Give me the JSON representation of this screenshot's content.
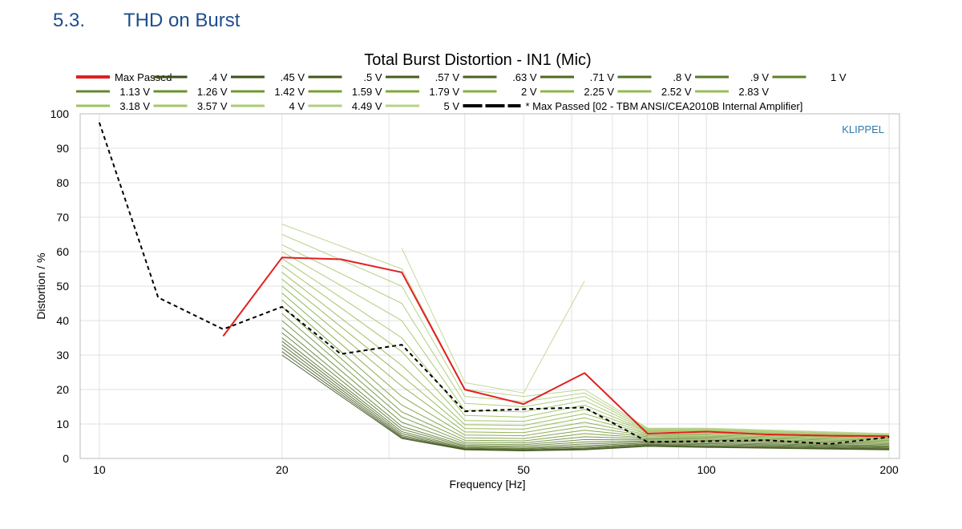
{
  "section": {
    "number": "5.3.",
    "title": "THD on Burst"
  },
  "chart_data": {
    "type": "line",
    "title": "Total Burst Distortion - IN1 (Mic)",
    "xlabel": "Frequency [Hz]",
    "ylabel": "Distortion / %",
    "x_scale": "log",
    "xlim": [
      9.3,
      208
    ],
    "ylim": [
      0,
      100
    ],
    "x_ticks": [
      10,
      20,
      50,
      100,
      200
    ],
    "y_ticks": [
      0,
      10,
      20,
      30,
      40,
      50,
      60,
      70,
      80,
      90,
      100
    ],
    "grid": true,
    "watermark": "KLIPPEL",
    "legend_position": "top",
    "series": [
      {
        "name": "Max Passed",
        "color": "#e02020",
        "style": "solid",
        "emphasis": true,
        "x": [
          16,
          20,
          25,
          31.5,
          40,
          50,
          63,
          80,
          100,
          125,
          160,
          200
        ],
        "y": [
          35.5,
          58.3,
          57.8,
          54,
          20,
          15.8,
          24.8,
          7.2,
          7.8,
          7,
          6.6,
          6.5
        ]
      },
      {
        "name": ".4 V",
        "color": "#3a4d17",
        "x": [
          20,
          31.5,
          40,
          50,
          63,
          80,
          100,
          200
        ],
        "y": [
          30,
          5.8,
          2.5,
          2.2,
          2.5,
          3.5,
          3.2,
          2.5
        ]
      },
      {
        "name": ".45 V",
        "color": "#3d5219",
        "x": [
          20,
          31.5,
          40,
          50,
          63,
          80,
          100,
          200
        ],
        "y": [
          31,
          6,
          2.6,
          2.3,
          2.6,
          3.6,
          3.3,
          2.6
        ]
      },
      {
        "name": ".5 V",
        "color": "#41571b",
        "x": [
          20,
          31.5,
          40,
          50,
          63,
          80,
          100,
          200
        ],
        "y": [
          32,
          6.3,
          2.7,
          2.4,
          2.8,
          3.8,
          3.5,
          2.7
        ]
      },
      {
        "name": ".57 V",
        "color": "#455d1d",
        "x": [
          20,
          31.5,
          40,
          50,
          63,
          80,
          100,
          200
        ],
        "y": [
          33,
          6.7,
          2.8,
          2.5,
          3,
          4,
          3.7,
          2.9
        ]
      },
      {
        "name": ".63 V",
        "color": "#4a631f",
        "x": [
          20,
          31.5,
          40,
          50,
          63,
          80,
          100,
          200
        ],
        "y": [
          34,
          7.2,
          3,
          2.7,
          3.3,
          4.2,
          4,
          3.1
        ]
      },
      {
        "name": ".71 V",
        "color": "#4f6a21",
        "x": [
          20,
          31.5,
          40,
          50,
          63,
          80,
          100,
          200
        ],
        "y": [
          35,
          7.8,
          3.2,
          2.9,
          3.7,
          4.5,
          4.3,
          3.3
        ]
      },
      {
        "name": ".8 V",
        "color": "#547124",
        "x": [
          20,
          31.5,
          40,
          50,
          63,
          80,
          100,
          200
        ],
        "y": [
          36.5,
          8.5,
          3.5,
          3.2,
          4.2,
          4.8,
          4.6,
          3.5
        ]
      },
      {
        "name": ".9 V",
        "color": "#597826",
        "x": [
          20,
          31.5,
          40,
          50,
          63,
          80,
          100,
          200
        ],
        "y": [
          38,
          9.3,
          3.8,
          3.6,
          4.8,
          5.1,
          5,
          3.7
        ]
      },
      {
        "name": "1 V",
        "color": "#5f8029",
        "x": [
          20,
          31.5,
          40,
          50,
          63,
          80,
          100,
          200
        ],
        "y": [
          40,
          10.5,
          4.2,
          4,
          5.5,
          5.4,
          5.3,
          4
        ]
      },
      {
        "name": "1.13 V",
        "color": "#65882c",
        "x": [
          20,
          31.5,
          40,
          50,
          63,
          80,
          100,
          200
        ],
        "y": [
          42,
          12,
          4.7,
          4.5,
          6.3,
          5.7,
          5.6,
          4.3
        ]
      },
      {
        "name": "1.26 V",
        "color": "#6b902f",
        "x": [
          20,
          31.5,
          40,
          50,
          63,
          80,
          100,
          200
        ],
        "y": [
          44,
          13.5,
          5.3,
          5.1,
          7.2,
          6,
          5.9,
          4.6
        ]
      },
      {
        "name": "1.42 V",
        "color": "#729832",
        "x": [
          20,
          31.5,
          40,
          50,
          63,
          80,
          100,
          200
        ],
        "y": [
          46,
          15.5,
          6,
          5.8,
          8.2,
          6.3,
          6.2,
          4.9
        ]
      },
      {
        "name": "1.59 V",
        "color": "#79a036",
        "x": [
          20,
          31.5,
          40,
          50,
          63,
          80,
          100,
          200
        ],
        "y": [
          48,
          18,
          6.8,
          6.6,
          9.3,
          6.6,
          6.5,
          5.2
        ]
      },
      {
        "name": "1.79 V",
        "color": "#80a83a",
        "x": [
          20,
          31.5,
          40,
          50,
          63,
          80,
          100,
          200
        ],
        "y": [
          50,
          21,
          7.7,
          7.5,
          10.5,
          6.9,
          6.8,
          5.5
        ]
      },
      {
        "name": "2 V",
        "color": "#87ae40",
        "x": [
          20,
          31.5,
          40,
          50,
          63,
          80,
          100,
          200
        ],
        "y": [
          52,
          24,
          8.7,
          8.5,
          11.8,
          7.2,
          7.1,
          5.8
        ]
      },
      {
        "name": "2.25 V",
        "color": "#8db447",
        "x": [
          20,
          31.5,
          40,
          50,
          63,
          80,
          100,
          200
        ],
        "y": [
          54,
          27,
          9.8,
          9.6,
          13,
          7.5,
          7.4,
          6
        ]
      },
      {
        "name": "2.52 V",
        "color": "#93b94f",
        "x": [
          20,
          31.5,
          40,
          50,
          63,
          80,
          100,
          200
        ],
        "y": [
          56,
          31,
          11,
          10.8,
          14.2,
          7.8,
          7.7,
          6.2
        ]
      },
      {
        "name": "2.83 V",
        "color": "#99be58",
        "x": [
          20,
          31.5,
          40,
          50,
          63,
          80,
          100,
          200
        ],
        "y": [
          58,
          35,
          12.5,
          12,
          15.5,
          8,
          8,
          6.4
        ]
      },
      {
        "name": "3.18 V",
        "color": "#9fc261",
        "x": [
          20,
          31.5,
          40,
          50,
          63,
          80,
          100,
          200
        ],
        "y": [
          60,
          40,
          14,
          13.5,
          16.8,
          8.2,
          8.2,
          6.6
        ]
      },
      {
        "name": "3.57 V",
        "color": "#a5c66b",
        "x": [
          20,
          31.5,
          40,
          50,
          63,
          80,
          100,
          200
        ],
        "y": [
          62,
          45,
          16,
          15,
          18,
          8.4,
          8.4,
          6.8
        ]
      },
      {
        "name": "4 V",
        "color": "#abca75",
        "x": [
          20,
          31.5,
          40,
          50,
          63,
          80,
          100,
          200
        ],
        "y": [
          65,
          50,
          18,
          16.5,
          19,
          8.6,
          8.6,
          7
        ]
      },
      {
        "name": "4.49 V",
        "color": "#b1ce80",
        "x": [
          20,
          31.5,
          40,
          50,
          63,
          80,
          100,
          200
        ],
        "y": [
          68,
          55,
          20,
          18,
          20,
          8.8,
          8.8,
          7.2
        ]
      },
      {
        "name": "5 V",
        "color": "#b8d28b",
        "x": [
          31.5,
          40,
          50,
          63
        ],
        "y": [
          61,
          22,
          19,
          51.5
        ]
      },
      {
        "name": "* Max Passed [02 - TBM ANSI/CEA2010B Internal Amplifier]",
        "color": "#000000",
        "style": "dashed",
        "emphasis": true,
        "x": [
          10,
          12.5,
          16,
          20,
          25,
          31.5,
          40,
          50,
          63,
          80,
          100,
          125,
          160,
          200
        ],
        "y": [
          97.5,
          46.7,
          37.5,
          44,
          30.3,
          33,
          13.7,
          14.3,
          14.8,
          4.8,
          5,
          5.3,
          4.2,
          6.2
        ]
      }
    ]
  }
}
